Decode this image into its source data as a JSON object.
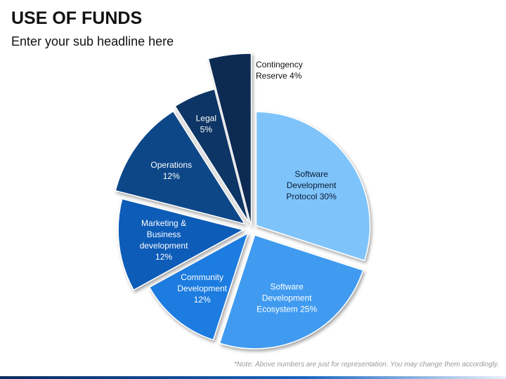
{
  "header": {
    "title": "USE OF FUNDS",
    "subtitle": "Enter your sub headline here"
  },
  "footer": {
    "note": "*Note: Above numbers are just for representation. You may change them accordingly."
  },
  "chart_data": {
    "type": "pie",
    "title": "USE OF FUNDS",
    "exploded": true,
    "slices": [
      {
        "category": "Software Development Protocol",
        "value": 30,
        "label_lines": [
          "Software",
          "Development",
          "Protocol 30%"
        ],
        "color": "#7ec4fb",
        "text_color": "#0b1a33"
      },
      {
        "category": "Software Development Ecosystem",
        "value": 25,
        "label_lines": [
          "Software",
          "Development",
          "Ecosystem 25%"
        ],
        "color": "#3f9bf0",
        "text_color": "#ffffff"
      },
      {
        "category": "Community Development",
        "value": 12,
        "label_lines": [
          "Community",
          "Development",
          "12%"
        ],
        "color": "#1f7be0",
        "text_color": "#ffffff"
      },
      {
        "category": "Marketing & Business development",
        "value": 12,
        "label_lines": [
          "Marketing &",
          "Business",
          "development",
          "12%"
        ],
        "color": "#0b5cb8",
        "text_color": "#ffffff"
      },
      {
        "category": "Operations",
        "value": 12,
        "label_lines": [
          "Operations",
          "12%"
        ],
        "color": "#0a4688",
        "text_color": "#ffffff"
      },
      {
        "category": "Legal",
        "value": 5,
        "label_lines": [
          "Legal",
          "5%"
        ],
        "color": "#083565",
        "text_color": "#ffffff"
      },
      {
        "category": "Contingency Reserve",
        "value": 4,
        "label_lines": [
          "Contingency",
          "Reserve 4%"
        ],
        "color": "#072b52",
        "text_color": "#111111"
      }
    ]
  }
}
